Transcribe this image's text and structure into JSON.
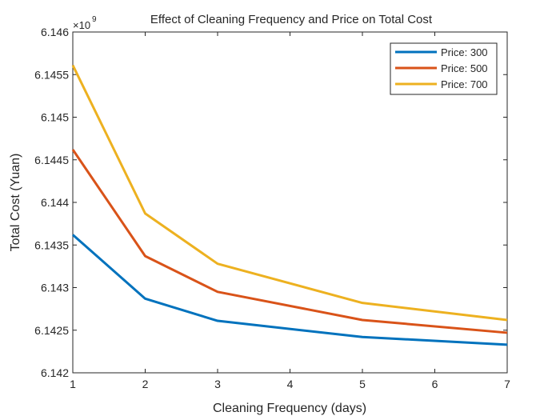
{
  "chart_data": {
    "type": "line",
    "title": "Effect of Cleaning Frequency and Price on Total Cost",
    "xlabel": "Cleaning Frequency (days)",
    "ylabel": "Total Cost (Yuan)",
    "y_exponent_label": "×10",
    "y_exponent_power": "9",
    "xlim": [
      1,
      7
    ],
    "ylim": [
      6.142,
      6.146
    ],
    "x_ticks": [
      1,
      2,
      3,
      4,
      5,
      6,
      7
    ],
    "y_ticks": [
      6.142,
      6.1425,
      6.143,
      6.1435,
      6.144,
      6.1445,
      6.145,
      6.1455,
      6.146
    ],
    "x_tick_labels": [
      "1",
      "2",
      "3",
      "4",
      "5",
      "6",
      "7"
    ],
    "y_tick_labels": [
      "6.142",
      "6.1425",
      "6.143",
      "6.1435",
      "6.144",
      "6.1445",
      "6.145",
      "6.1455",
      "6.146"
    ],
    "grid": false,
    "legend_position": "top-right",
    "x": [
      1,
      2,
      3,
      5,
      7
    ],
    "series": [
      {
        "name": "Price: 300",
        "color": "#0072BD",
        "values": [
          6.14362,
          6.14287,
          6.14261,
          6.14242,
          6.14233
        ]
      },
      {
        "name": "Price: 500",
        "color": "#D95319",
        "values": [
          6.14462,
          6.14337,
          6.14295,
          6.14262,
          6.14247
        ]
      },
      {
        "name": "Price: 700",
        "color": "#EDB120",
        "values": [
          6.14561,
          6.14387,
          6.14328,
          6.14282,
          6.14262
        ]
      }
    ]
  }
}
